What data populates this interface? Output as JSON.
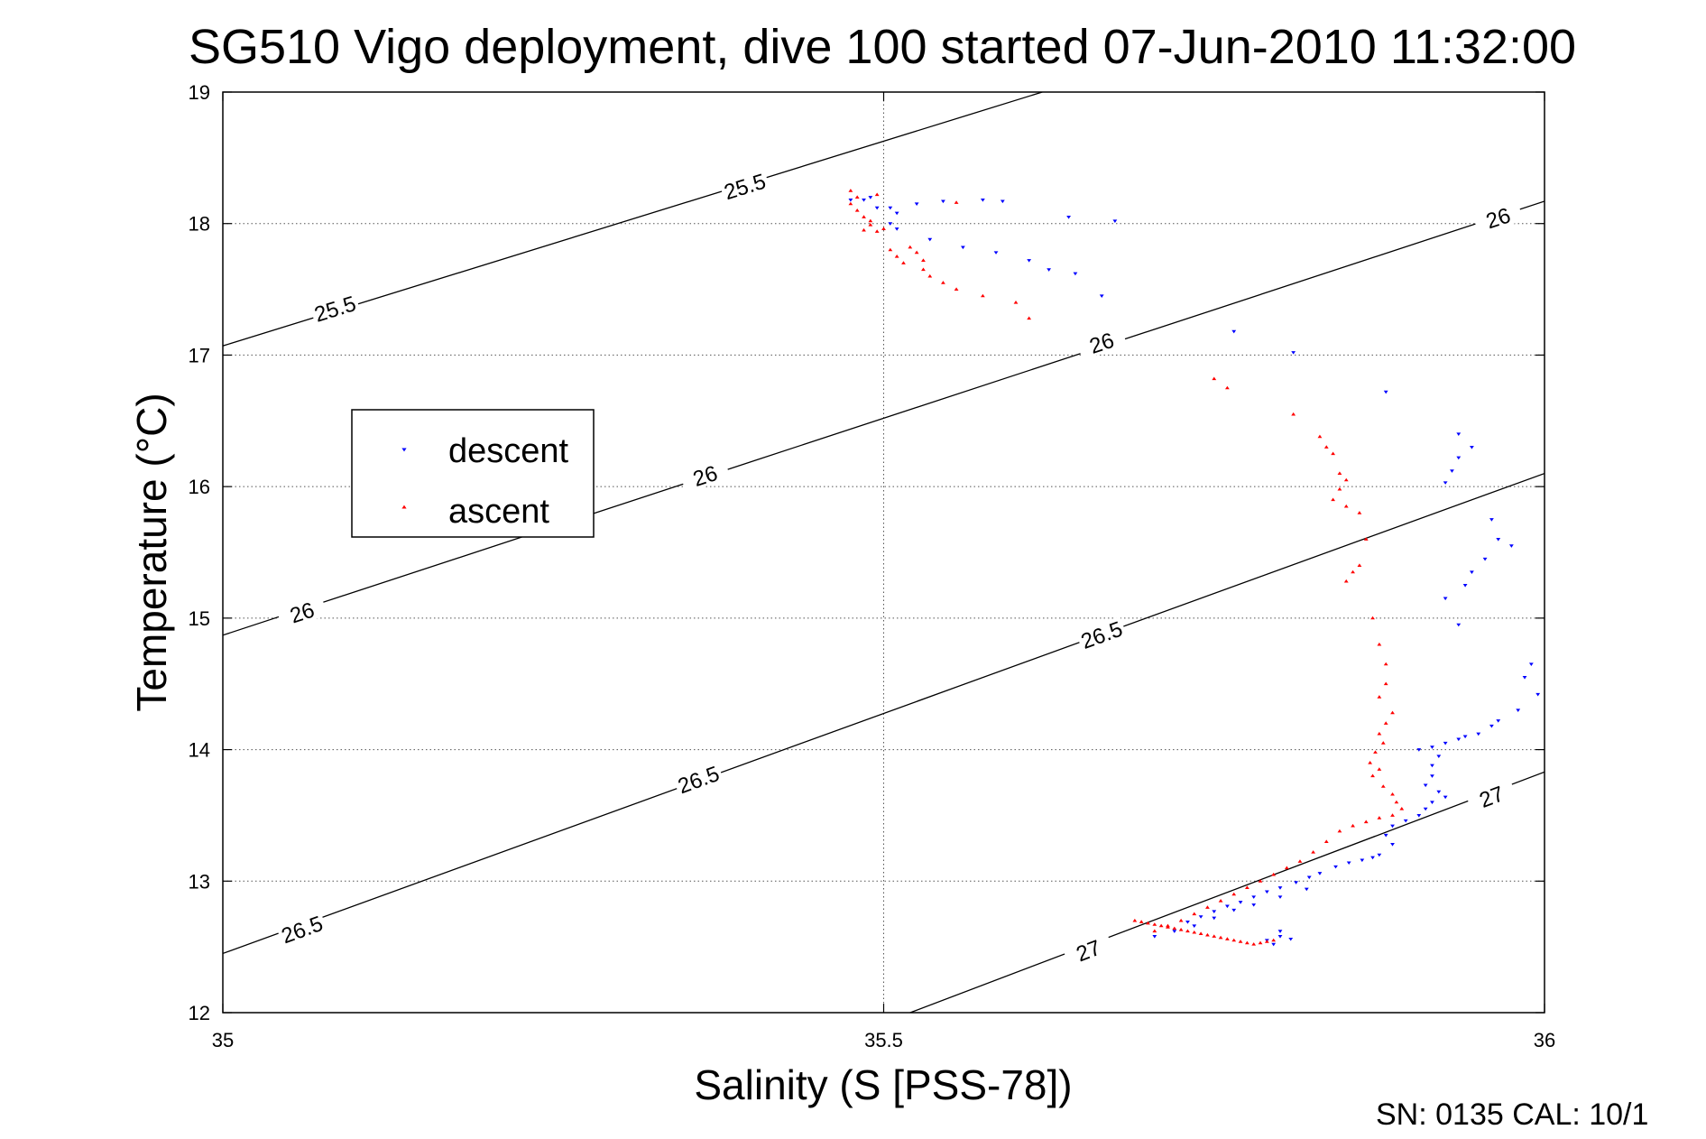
{
  "chart_data": {
    "type": "scatter",
    "title": "SG510 Vigo deployment, dive 100 started 07-Jun-2010 11:32:00",
    "xlabel": "Salinity (S [PSS-78])",
    "ylabel": "Temperature (°C)",
    "xlim": [
      35,
      36
    ],
    "ylim": [
      12,
      19
    ],
    "x_ticks": [
      35,
      35.5,
      36
    ],
    "x_tick_labels": [
      "35",
      "35.5",
      "36"
    ],
    "y_ticks": [
      12,
      13,
      14,
      15,
      16,
      17,
      18,
      19
    ],
    "y_tick_labels": [
      "12",
      "13",
      "14",
      "15",
      "16",
      "17",
      "18",
      "19"
    ],
    "grid": true,
    "legend_position": "upper-left",
    "footer": "SN: 0135  CAL: 10/1",
    "isopycnals": [
      {
        "sigma": "25.5",
        "points": [
          [
            35.0,
            17.07
          ],
          [
            35.62,
            19.0
          ]
        ],
        "labels": [
          [
            35.085,
            17.35
          ],
          [
            35.395,
            18.28
          ]
        ]
      },
      {
        "sigma": "26",
        "points": [
          [
            35.0,
            14.87
          ],
          [
            36.0,
            18.17
          ]
        ],
        "labels": [
          [
            35.06,
            15.04
          ],
          [
            35.365,
            16.08
          ],
          [
            35.665,
            17.09
          ],
          [
            35.965,
            18.04
          ]
        ]
      },
      {
        "sigma": "26.5",
        "points": [
          [
            35.0,
            12.45
          ],
          [
            36.0,
            16.1
          ]
        ],
        "labels": [
          [
            35.06,
            12.63
          ],
          [
            35.36,
            13.77
          ],
          [
            35.665,
            14.87
          ]
        ]
      },
      {
        "sigma": "27",
        "points": [
          [
            35.52,
            12.0
          ],
          [
            36.0,
            13.83
          ]
        ],
        "labels": [
          [
            35.655,
            12.47
          ],
          [
            35.96,
            13.64
          ]
        ]
      }
    ],
    "series": [
      {
        "name": "descent",
        "color": "#0000ff",
        "marker": "triangle-down",
        "points": [
          [
            35.475,
            18.18
          ],
          [
            35.485,
            18.18
          ],
          [
            35.49,
            18.2
          ],
          [
            35.495,
            18.12
          ],
          [
            35.505,
            18.12
          ],
          [
            35.51,
            18.08
          ],
          [
            35.505,
            18.0
          ],
          [
            35.51,
            17.96
          ],
          [
            35.525,
            18.15
          ],
          [
            35.545,
            18.17
          ],
          [
            35.575,
            18.18
          ],
          [
            35.59,
            18.17
          ],
          [
            35.535,
            17.88
          ],
          [
            35.56,
            17.82
          ],
          [
            35.585,
            17.78
          ],
          [
            35.61,
            17.72
          ],
          [
            35.625,
            17.65
          ],
          [
            35.645,
            17.62
          ],
          [
            35.64,
            18.05
          ],
          [
            35.675,
            18.02
          ],
          [
            35.665,
            17.45
          ],
          [
            35.765,
            17.18
          ],
          [
            35.81,
            17.02
          ],
          [
            35.88,
            16.72
          ],
          [
            35.935,
            16.4
          ],
          [
            35.945,
            16.3
          ],
          [
            35.935,
            16.22
          ],
          [
            35.93,
            16.12
          ],
          [
            35.925,
            16.03
          ],
          [
            35.96,
            15.75
          ],
          [
            35.965,
            15.6
          ],
          [
            35.975,
            15.55
          ],
          [
            35.955,
            15.45
          ],
          [
            35.945,
            15.35
          ],
          [
            35.94,
            15.25
          ],
          [
            35.925,
            15.15
          ],
          [
            35.935,
            14.95
          ],
          [
            35.99,
            14.65
          ],
          [
            35.985,
            14.55
          ],
          [
            35.995,
            14.42
          ],
          [
            35.98,
            14.3
          ],
          [
            35.965,
            14.22
          ],
          [
            35.96,
            14.18
          ],
          [
            35.95,
            14.12
          ],
          [
            35.94,
            14.1
          ],
          [
            35.935,
            14.08
          ],
          [
            35.925,
            14.05
          ],
          [
            35.915,
            14.02
          ],
          [
            35.905,
            14.0
          ],
          [
            35.92,
            13.95
          ],
          [
            35.915,
            13.88
          ],
          [
            35.915,
            13.8
          ],
          [
            35.91,
            13.73
          ],
          [
            35.92,
            13.68
          ],
          [
            35.925,
            13.64
          ],
          [
            35.915,
            13.6
          ],
          [
            35.91,
            13.55
          ],
          [
            35.905,
            13.5
          ],
          [
            35.895,
            13.46
          ],
          [
            35.885,
            13.42
          ],
          [
            35.88,
            13.35
          ],
          [
            35.885,
            13.28
          ],
          [
            35.875,
            13.2
          ],
          [
            35.87,
            13.18
          ],
          [
            35.862,
            13.16
          ],
          [
            35.852,
            13.14
          ],
          [
            35.842,
            13.11
          ],
          [
            35.83,
            13.06
          ],
          [
            35.822,
            13.03
          ],
          [
            35.812,
            12.99
          ],
          [
            35.8,
            12.95
          ],
          [
            35.79,
            12.92
          ],
          [
            35.78,
            12.88
          ],
          [
            35.77,
            12.84
          ],
          [
            35.76,
            12.81
          ],
          [
            35.75,
            12.77
          ],
          [
            35.74,
            12.73
          ],
          [
            35.73,
            12.69
          ],
          [
            35.82,
            12.94
          ],
          [
            35.8,
            12.88
          ],
          [
            35.78,
            12.82
          ],
          [
            35.765,
            12.78
          ],
          [
            35.75,
            12.72
          ],
          [
            35.735,
            12.66
          ],
          [
            35.72,
            12.62
          ],
          [
            35.705,
            12.58
          ],
          [
            35.8,
            12.62
          ],
          [
            35.79,
            12.55
          ],
          [
            35.795,
            12.52
          ],
          [
            35.8,
            12.58
          ],
          [
            35.808,
            12.56
          ]
        ]
      },
      {
        "name": "ascent",
        "color": "#ff0000",
        "marker": "triangle-up",
        "points": [
          [
            35.475,
            18.25
          ],
          [
            35.48,
            18.2
          ],
          [
            35.475,
            18.15
          ],
          [
            35.48,
            18.1
          ],
          [
            35.485,
            18.05
          ],
          [
            35.49,
            17.99
          ],
          [
            35.485,
            17.95
          ],
          [
            35.495,
            17.94
          ],
          [
            35.5,
            17.96
          ],
          [
            35.49,
            18.02
          ],
          [
            35.495,
            18.22
          ],
          [
            35.505,
            17.8
          ],
          [
            35.51,
            17.75
          ],
          [
            35.515,
            17.7
          ],
          [
            35.52,
            17.82
          ],
          [
            35.525,
            17.78
          ],
          [
            35.53,
            17.72
          ],
          [
            35.53,
            17.65
          ],
          [
            35.535,
            17.6
          ],
          [
            35.545,
            17.55
          ],
          [
            35.555,
            17.5
          ],
          [
            35.575,
            17.45
          ],
          [
            35.6,
            17.4
          ],
          [
            35.555,
            18.16
          ],
          [
            35.61,
            17.28
          ],
          [
            35.75,
            16.82
          ],
          [
            35.76,
            16.75
          ],
          [
            35.81,
            16.55
          ],
          [
            35.83,
            16.38
          ],
          [
            35.835,
            16.3
          ],
          [
            35.84,
            16.25
          ],
          [
            35.845,
            16.1
          ],
          [
            35.85,
            16.05
          ],
          [
            35.845,
            15.98
          ],
          [
            35.84,
            15.9
          ],
          [
            35.85,
            15.85
          ],
          [
            35.86,
            15.8
          ],
          [
            35.865,
            15.6
          ],
          [
            35.86,
            15.4
          ],
          [
            35.855,
            15.35
          ],
          [
            35.85,
            15.28
          ],
          [
            35.87,
            15.0
          ],
          [
            35.875,
            14.8
          ],
          [
            35.88,
            14.65
          ],
          [
            35.88,
            14.5
          ],
          [
            35.875,
            14.4
          ],
          [
            35.885,
            14.28
          ],
          [
            35.88,
            14.2
          ],
          [
            35.875,
            14.12
          ],
          [
            35.878,
            14.05
          ],
          [
            35.872,
            13.98
          ],
          [
            35.868,
            13.9
          ],
          [
            35.875,
            13.85
          ],
          [
            35.87,
            13.8
          ],
          [
            35.878,
            13.72
          ],
          [
            35.885,
            13.66
          ],
          [
            35.888,
            13.6
          ],
          [
            35.892,
            13.55
          ],
          [
            35.885,
            13.5
          ],
          [
            35.875,
            13.48
          ],
          [
            35.865,
            13.45
          ],
          [
            35.855,
            13.42
          ],
          [
            35.845,
            13.38
          ],
          [
            35.835,
            13.3
          ],
          [
            35.825,
            13.22
          ],
          [
            35.815,
            13.15
          ],
          [
            35.805,
            13.1
          ],
          [
            35.795,
            13.05
          ],
          [
            35.785,
            13.0
          ],
          [
            35.775,
            12.95
          ],
          [
            35.765,
            12.9
          ],
          [
            35.755,
            12.85
          ],
          [
            35.745,
            12.8
          ],
          [
            35.735,
            12.75
          ],
          [
            35.725,
            12.7
          ],
          [
            35.715,
            12.66
          ],
          [
            35.705,
            12.62
          ],
          [
            35.795,
            12.55
          ],
          [
            35.79,
            12.54
          ],
          [
            35.785,
            12.53
          ],
          [
            35.78,
            12.52
          ],
          [
            35.775,
            12.53
          ],
          [
            35.77,
            12.54
          ],
          [
            35.765,
            12.55
          ],
          [
            35.76,
            12.56
          ],
          [
            35.755,
            12.57
          ],
          [
            35.75,
            12.58
          ],
          [
            35.745,
            12.59
          ],
          [
            35.74,
            12.6
          ],
          [
            35.735,
            12.61
          ],
          [
            35.73,
            12.62
          ],
          [
            35.725,
            12.63
          ],
          [
            35.72,
            12.64
          ],
          [
            35.715,
            12.65
          ],
          [
            35.71,
            12.66
          ],
          [
            35.705,
            12.67
          ],
          [
            35.7,
            12.68
          ],
          [
            35.695,
            12.69
          ],
          [
            35.69,
            12.7
          ]
        ]
      }
    ]
  }
}
